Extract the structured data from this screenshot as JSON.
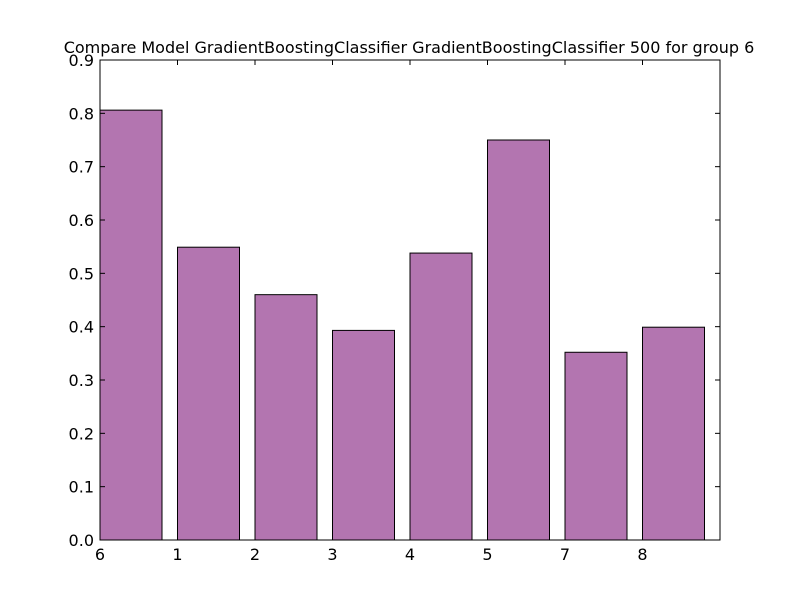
{
  "chart_data": {
    "type": "bar",
    "title": "Compare Model GradientBoostingClassifier GradientBoostingClassifier 500 for group 6",
    "xlabel": "",
    "ylabel": "",
    "categories": [
      "6",
      "1",
      "2",
      "3",
      "4",
      "5",
      "7",
      "8"
    ],
    "values": [
      0.806,
      0.549,
      0.46,
      0.393,
      0.538,
      0.75,
      0.352,
      0.399
    ],
    "ylim": [
      0,
      0.9
    ],
    "yticks": [
      "0.0",
      "0.1",
      "0.2",
      "0.3",
      "0.4",
      "0.5",
      "0.6",
      "0.7",
      "0.8",
      "0.9"
    ],
    "bar_color": "#b375b0",
    "edge_color": "#000000",
    "grid": false,
    "legend": false
  }
}
